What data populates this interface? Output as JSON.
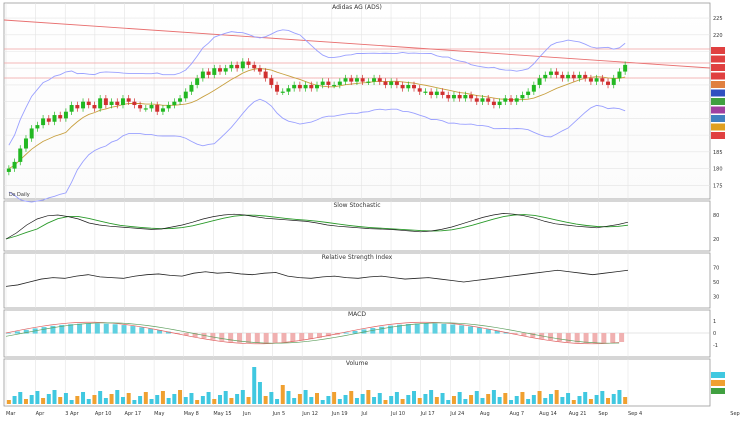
{
  "chart_data": {
    "type": "line",
    "title": "Adidas AG (ADS)",
    "x_tick_labels": [
      "Mar",
      "Apr",
      "3 Apr",
      "Apr 10",
      "Apr 17",
      "May",
      "May 8",
      "May 15",
      "Jun",
      "Jun 5",
      "Jun 12",
      "Jun 19",
      "Jul",
      "Jul 10",
      "Jul 17",
      "Jul 24",
      "Aug",
      "Aug 7",
      "Aug 14",
      "Aug 21",
      "Sep",
      "Sep 4"
    ],
    "bottom_right_label": "Sep",
    "price_panel": {
      "y_ticks": [
        225,
        220,
        215,
        210,
        205,
        200,
        195,
        190,
        185,
        180,
        175
      ],
      "ylim": [
        173,
        228
      ],
      "corner_label": "Ds Daily",
      "right_badges": [
        {
          "color": "#e04040"
        },
        {
          "color": "#e04040"
        },
        {
          "color": "#e04040"
        },
        {
          "color": "#e04040"
        },
        {
          "color": "#e08040"
        },
        {
          "color": "#3050c0"
        },
        {
          "color": "#40a040"
        },
        {
          "color": "#a040a0"
        },
        {
          "color": "#4080c0"
        },
        {
          "color": "#e0a020"
        },
        {
          "color": "#e04040"
        }
      ],
      "candles": [
        180,
        182,
        186,
        189,
        192,
        193,
        195,
        194,
        196,
        195,
        197,
        199,
        198,
        200,
        199,
        198,
        201,
        199,
        200,
        199,
        201,
        200,
        199,
        198,
        198,
        199,
        197,
        198,
        199,
        200,
        201,
        203,
        205,
        207,
        209,
        208,
        210,
        209,
        210,
        211,
        210,
        212,
        211,
        210,
        209,
        207,
        205,
        203,
        203,
        204,
        205,
        204,
        205,
        204,
        205,
        206,
        205,
        205,
        206,
        207,
        206,
        207,
        206,
        206,
        207,
        206,
        205,
        206,
        205,
        204,
        205,
        204,
        203,
        203,
        202,
        203,
        202,
        201,
        202,
        201,
        202,
        201,
        200,
        201,
        200,
        199,
        200,
        201,
        200,
        201,
        202,
        203,
        205,
        207,
        208,
        209,
        208,
        207,
        208,
        207,
        208,
        207,
        206,
        207,
        206,
        205,
        207,
        209,
        211
      ]
    },
    "stoch_panel": {
      "title": "Slow Stochastic",
      "y_ticks": [
        80,
        20
      ],
      "k": [
        20,
        35,
        55,
        70,
        78,
        80,
        76,
        70,
        60,
        55,
        52,
        50,
        48,
        46,
        44,
        45,
        50,
        55,
        62,
        70,
        76,
        80,
        82,
        80,
        76,
        72,
        70,
        68,
        66,
        64,
        60,
        55,
        52,
        50,
        48,
        46,
        45,
        44,
        42,
        40,
        38,
        40,
        44,
        50,
        58,
        66,
        74,
        80,
        84,
        82,
        78,
        72,
        64,
        58,
        55,
        52,
        50,
        48,
        52,
        56,
        62
      ]
    },
    "rsi_panel": {
      "title": "Relative Strength Index",
      "y_ticks": [
        70,
        50,
        30
      ],
      "values": [
        44,
        46,
        50,
        54,
        56,
        55,
        58,
        60,
        57,
        56,
        55,
        58,
        60,
        61,
        59,
        58,
        62,
        64,
        62,
        63,
        61,
        60,
        62,
        63,
        58,
        56,
        55,
        57,
        58,
        56,
        55,
        57,
        58,
        56,
        54,
        55,
        56,
        54,
        52,
        50,
        52,
        54,
        56,
        58,
        60,
        62,
        64,
        66,
        64,
        62,
        60,
        62,
        64,
        66
      ]
    },
    "macd_panel": {
      "title": "MACD",
      "y_ticks": [
        1,
        0,
        -1
      ]
    },
    "volume_panel": {
      "title": "Volume"
    }
  }
}
